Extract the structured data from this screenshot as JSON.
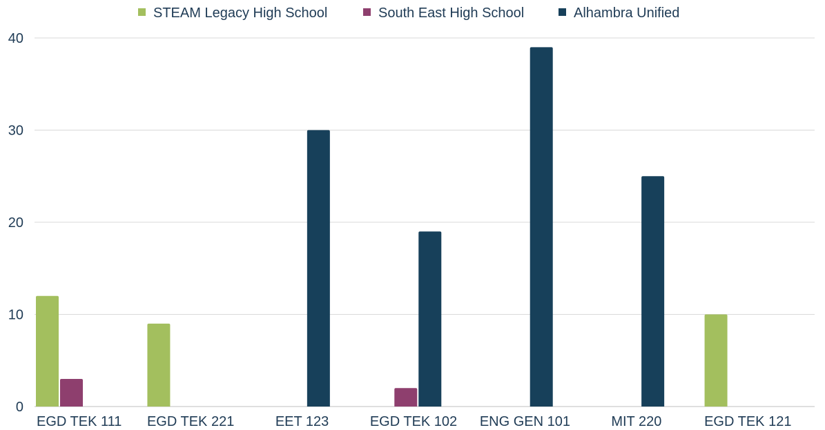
{
  "chart_data": {
    "type": "bar",
    "categories": [
      "EGD TEK 111",
      "EGD TEK 221",
      "EET 123",
      "EGD TEK 102",
      "ENG GEN 101",
      "MIT 220",
      "EGD TEK 121"
    ],
    "series": [
      {
        "name": "STEAM Legacy High School",
        "color": "#a3bf5e",
        "values": [
          12,
          9,
          0,
          0,
          0,
          0,
          10
        ]
      },
      {
        "name": "South East High School",
        "color": "#8e3f6e",
        "values": [
          3,
          0,
          0,
          2,
          0,
          0,
          0
        ]
      },
      {
        "name": "Alhambra Unified",
        "color": "#17405a",
        "values": [
          0,
          0,
          30,
          19,
          39,
          25,
          0
        ]
      }
    ],
    "ylim": [
      0,
      40
    ],
    "yticks": [
      0,
      10,
      20,
      30,
      40
    ],
    "grid": true,
    "legend_position": "top-center",
    "title": "",
    "xlabel": "",
    "ylabel": ""
  }
}
